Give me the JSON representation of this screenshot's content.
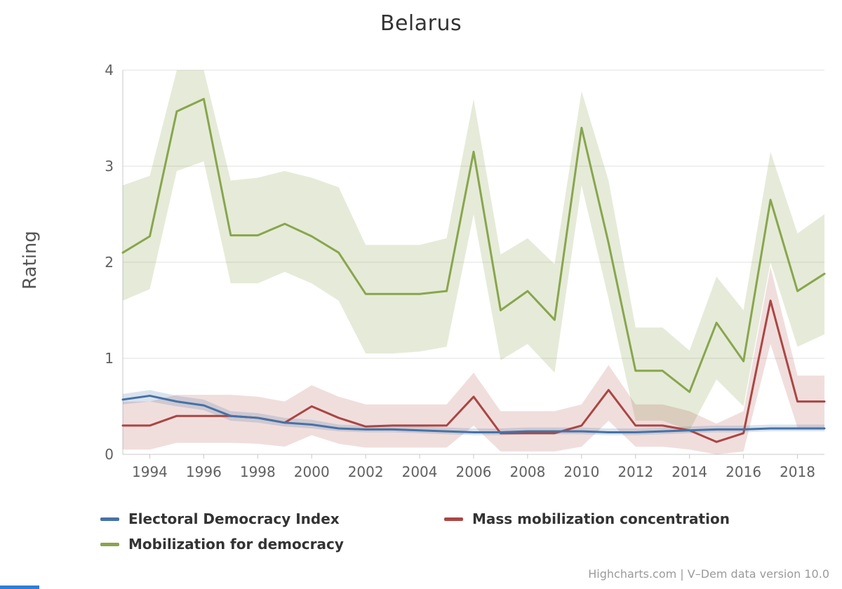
{
  "chart_data": {
    "type": "line",
    "title": "Belarus",
    "ylabel": "Rating",
    "ylim": [
      0,
      4
    ],
    "yticks": [
      0,
      1,
      2,
      3,
      4
    ],
    "xticks": [
      1994,
      1996,
      1998,
      2000,
      2002,
      2004,
      2006,
      2008,
      2010,
      2012,
      2014,
      2016,
      2018
    ],
    "x": [
      1993,
      1994,
      1995,
      1996,
      1997,
      1998,
      1999,
      2000,
      2001,
      2002,
      2003,
      2004,
      2005,
      2006,
      2007,
      2008,
      2009,
      2010,
      2011,
      2012,
      2013,
      2014,
      2015,
      2016,
      2017,
      2018,
      2019
    ],
    "grid": true,
    "legend_position": "bottom",
    "series": [
      {
        "name": "Electoral Democracy Index",
        "color": "#4572A7",
        "band_opacity": 0.2,
        "values": [
          0.57,
          0.61,
          0.55,
          0.51,
          0.4,
          0.38,
          0.33,
          0.31,
          0.27,
          0.26,
          0.26,
          0.25,
          0.24,
          0.23,
          0.23,
          0.24,
          0.24,
          0.24,
          0.23,
          0.23,
          0.24,
          0.25,
          0.26,
          0.26,
          0.27,
          0.27,
          0.27
        ],
        "band_low": [
          0.52,
          0.55,
          0.5,
          0.46,
          0.35,
          0.33,
          0.29,
          0.27,
          0.24,
          0.23,
          0.23,
          0.22,
          0.21,
          0.2,
          0.2,
          0.21,
          0.21,
          0.21,
          0.2,
          0.2,
          0.21,
          0.22,
          0.23,
          0.23,
          0.24,
          0.24,
          0.24
        ],
        "band_high": [
          0.63,
          0.67,
          0.61,
          0.57,
          0.45,
          0.43,
          0.38,
          0.36,
          0.31,
          0.3,
          0.3,
          0.29,
          0.28,
          0.27,
          0.27,
          0.28,
          0.28,
          0.28,
          0.27,
          0.27,
          0.28,
          0.29,
          0.3,
          0.3,
          0.31,
          0.31,
          0.31
        ]
      },
      {
        "name": "Mass mobilization concentration",
        "color": "#AA4643",
        "band_opacity": 0.18,
        "values": [
          0.3,
          0.3,
          0.4,
          0.4,
          0.4,
          0.38,
          0.33,
          0.5,
          0.38,
          0.29,
          0.3,
          0.3,
          0.3,
          0.6,
          0.22,
          0.22,
          0.22,
          0.3,
          0.67,
          0.3,
          0.3,
          0.25,
          0.13,
          0.22,
          1.6,
          0.55,
          0.55
        ],
        "band_low": [
          0.05,
          0.05,
          0.12,
          0.12,
          0.12,
          0.11,
          0.08,
          0.2,
          0.11,
          0.07,
          0.07,
          0.07,
          0.07,
          0.3,
          0.03,
          0.03,
          0.03,
          0.08,
          0.35,
          0.08,
          0.08,
          0.05,
          0.0,
          0.03,
          1.15,
          0.28,
          0.28
        ],
        "band_high": [
          0.55,
          0.55,
          0.62,
          0.62,
          0.62,
          0.6,
          0.55,
          0.72,
          0.6,
          0.52,
          0.52,
          0.52,
          0.52,
          0.85,
          0.45,
          0.45,
          0.45,
          0.52,
          0.93,
          0.52,
          0.52,
          0.45,
          0.32,
          0.45,
          1.95,
          0.82,
          0.82
        ]
      },
      {
        "name": "Mobilization for democracy",
        "color": "#89A54E",
        "band_opacity": 0.22,
        "values": [
          2.1,
          2.27,
          3.57,
          3.7,
          2.28,
          2.28,
          2.4,
          2.27,
          2.1,
          1.67,
          1.67,
          1.67,
          1.7,
          3.15,
          1.5,
          1.7,
          1.4,
          3.4,
          2.2,
          0.87,
          0.87,
          0.65,
          1.37,
          0.97,
          2.65,
          1.7,
          1.88
        ],
        "band_low": [
          1.6,
          1.72,
          2.95,
          3.05,
          1.78,
          1.78,
          1.9,
          1.78,
          1.6,
          1.05,
          1.05,
          1.07,
          1.12,
          2.5,
          0.98,
          1.15,
          0.85,
          2.8,
          1.62,
          0.35,
          0.35,
          0.25,
          0.78,
          0.5,
          2.0,
          1.12,
          1.25
        ],
        "band_high": [
          2.8,
          2.9,
          4.0,
          4.0,
          2.85,
          2.88,
          2.95,
          2.88,
          2.78,
          2.18,
          2.18,
          2.18,
          2.25,
          3.7,
          2.08,
          2.25,
          1.98,
          3.78,
          2.85,
          1.32,
          1.32,
          1.08,
          1.85,
          1.5,
          3.15,
          2.3,
          2.5
        ]
      }
    ]
  },
  "credits": "Highcharts.com | V–Dem data version 10.0",
  "ui": {
    "grid_color": "#e0e0e0",
    "axis_color": "#c8c8c8",
    "tick_label_color": "#606060",
    "corner_bar_color": "#2f7ed8"
  }
}
